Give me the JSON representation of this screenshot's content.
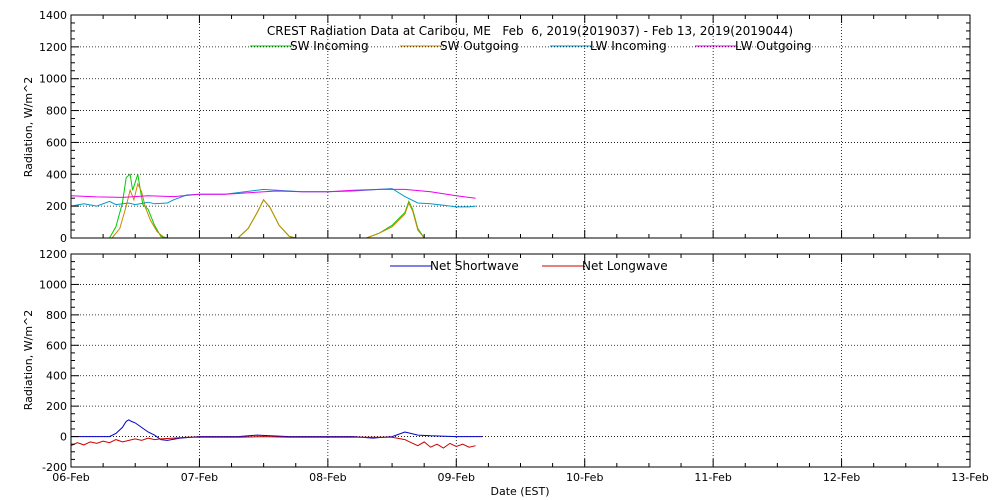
{
  "chart_data": {
    "type": "line",
    "title": "CREST Radiation Data at Caribou, ME   Feb  6, 2019(2019037) - Feb 13, 2019(2019044)",
    "xlabel": "Date (EST)",
    "x_ticks": [
      "06-Feb",
      "07-Feb",
      "08-Feb",
      "09-Feb",
      "10-Feb",
      "11-Feb",
      "12-Feb",
      "13-Feb"
    ],
    "x_unit": "days since 06-Feb 00:00",
    "xlim": [
      0,
      7
    ],
    "grid": true,
    "panels": [
      {
        "ylabel": "Radiation, W/m^2",
        "ylim": [
          0,
          1400
        ],
        "yticks": [
          0,
          200,
          400,
          600,
          800,
          1000,
          1200,
          1400
        ],
        "legend_position": "top",
        "series": [
          {
            "name": "SW Incoming",
            "color": "#00cc00",
            "x": [
              0.3,
              0.35,
              0.4,
              0.43,
              0.46,
              0.48,
              0.5,
              0.52,
              0.54,
              0.56,
              0.6,
              0.65,
              0.7,
              0.75,
              1.3,
              1.38,
              1.45,
              1.5,
              1.55,
              1.62,
              1.7,
              1.75,
              2.3,
              2.4,
              2.5,
              2.55,
              2.6,
              2.63,
              2.66,
              2.7,
              2.75
            ],
            "y": [
              0,
              70,
              220,
              380,
              400,
              300,
              350,
              400,
              300,
              210,
              180,
              80,
              10,
              0,
              0,
              60,
              160,
              240,
              190,
              80,
              10,
              0,
              0,
              30,
              80,
              120,
              160,
              230,
              180,
              60,
              0
            ]
          },
          {
            "name": "SW Outgoing",
            "color": "#cc8800",
            "x": [
              0.32,
              0.38,
              0.43,
              0.46,
              0.49,
              0.52,
              0.55,
              0.58,
              0.62,
              0.67,
              0.73,
              1.3,
              1.38,
              1.45,
              1.5,
              1.55,
              1.62,
              1.7,
              1.75,
              2.3,
              2.4,
              2.5,
              2.55,
              2.6,
              2.63,
              2.66,
              2.7,
              2.75
            ],
            "y": [
              0,
              60,
              200,
              300,
              240,
              340,
              290,
              190,
              110,
              40,
              0,
              0,
              60,
              160,
              240,
              190,
              80,
              10,
              0,
              0,
              30,
              70,
              110,
              150,
              220,
              170,
              50,
              0
            ]
          },
          {
            "name": "LW Incoming",
            "color": "#0099cc",
            "x": [
              0,
              0.1,
              0.2,
              0.3,
              0.35,
              0.45,
              0.5,
              0.6,
              0.65,
              0.75,
              0.8,
              0.9,
              1.0,
              1.2,
              1.4,
              1.5,
              1.6,
              1.8,
              2.0,
              2.2,
              2.4,
              2.5,
              2.6,
              2.7,
              2.8,
              2.9,
              3.0,
              3.1,
              3.15
            ],
            "y": [
              200,
              215,
              200,
              230,
              210,
              220,
              210,
              225,
              215,
              220,
              240,
              270,
              275,
              275,
              295,
              305,
              300,
              290,
              290,
              295,
              305,
              310,
              260,
              220,
              215,
              205,
              195,
              195,
              200
            ]
          },
          {
            "name": "LW Outgoing",
            "color": "#ee00ee",
            "x": [
              0,
              0.2,
              0.4,
              0.6,
              0.8,
              1.0,
              1.2,
              1.4,
              1.6,
              1.8,
              2.0,
              2.2,
              2.4,
              2.6,
              2.8,
              3.0,
              3.15
            ],
            "y": [
              265,
              258,
              255,
              265,
              260,
              275,
              275,
              285,
              295,
              290,
              290,
              300,
              305,
              305,
              290,
              265,
              250
            ]
          }
        ]
      },
      {
        "ylabel": "Radiation, W/m^2",
        "ylim": [
          -200,
          1200
        ],
        "yticks": [
          -200,
          0,
          200,
          400,
          600,
          800,
          1000,
          1200
        ],
        "legend_position": "top",
        "series": [
          {
            "name": "Net Shortwave",
            "color": "#0000cc",
            "x": [
              0,
              0.3,
              0.35,
              0.4,
              0.43,
              0.45,
              0.47,
              0.5,
              0.55,
              0.6,
              0.65,
              0.7,
              0.75,
              0.85,
              1.0,
              1.3,
              1.45,
              1.55,
              1.7,
              2.0,
              2.2,
              2.35,
              2.5,
              2.6,
              2.65,
              2.7,
              2.8,
              3.0,
              3.2
            ],
            "y": [
              0,
              0,
              20,
              60,
              100,
              110,
              100,
              90,
              60,
              30,
              10,
              -20,
              -25,
              -10,
              0,
              0,
              10,
              5,
              0,
              0,
              0,
              -10,
              0,
              30,
              20,
              10,
              5,
              0,
              0
            ]
          },
          {
            "name": "Net Longwave",
            "color": "#cc0000",
            "x": [
              0,
              0.05,
              0.1,
              0.15,
              0.2,
              0.25,
              0.3,
              0.35,
              0.4,
              0.45,
              0.5,
              0.55,
              0.6,
              0.65,
              0.7,
              0.8,
              0.9,
              1.0,
              1.3,
              1.5,
              1.7,
              2.0,
              2.3,
              2.5,
              2.6,
              2.65,
              2.7,
              2.75,
              2.8,
              2.85,
              2.9,
              2.95,
              3.0,
              3.05,
              3.1,
              3.15
            ],
            "y": [
              -60,
              -40,
              -55,
              -35,
              -45,
              -30,
              -40,
              -20,
              -35,
              -25,
              -15,
              -25,
              -10,
              -20,
              -15,
              -10,
              -5,
              -5,
              -5,
              0,
              -5,
              -5,
              -5,
              -5,
              -20,
              -40,
              -60,
              -35,
              -70,
              -50,
              -75,
              -45,
              -65,
              -50,
              -70,
              -60
            ]
          }
        ]
      }
    ]
  }
}
